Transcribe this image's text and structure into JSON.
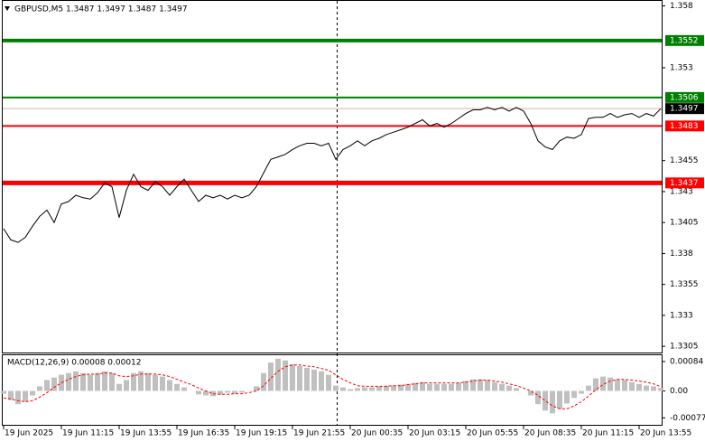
{
  "chart_data": [
    {
      "type": "line",
      "title": "GBPUSD,M5  1.3487 1.3497 1.3487 1.3497",
      "color": "#000000",
      "categories": [
        "19 Jun 2025",
        null,
        null,
        null,
        null,
        null,
        null,
        null,
        "19 Jun 11:15",
        null,
        null,
        null,
        null,
        null,
        null,
        null,
        "19 Jun 13:55",
        null,
        null,
        null,
        null,
        null,
        null,
        null,
        "19 Jun 16:35",
        null,
        null,
        null,
        null,
        null,
        null,
        null,
        "19 Jun 19:15",
        null,
        null,
        null,
        null,
        null,
        null,
        null,
        "19 Jun 21:55",
        null,
        null,
        null,
        null,
        null,
        null,
        null,
        "20 Jun 00:35",
        null,
        null,
        null,
        null,
        null,
        null,
        null,
        "20 Jun 03:15",
        null,
        null,
        null,
        null,
        null,
        null,
        null,
        "20 Jun 05:55",
        null,
        null,
        null,
        null,
        null,
        null,
        null,
        "20 Jun 08:35",
        null,
        null,
        null,
        null,
        null,
        null,
        null,
        "20 Jun 11:15",
        null,
        null,
        null,
        null,
        null,
        null,
        null,
        "20 Jun 13:55",
        null,
        null,
        null
      ],
      "values": [
        1.34,
        1.3391,
        1.3389,
        1.3393,
        1.3402,
        1.341,
        1.3415,
        1.3405,
        1.342,
        1.3422,
        1.3427,
        1.3425,
        1.3424,
        1.3429,
        1.3437,
        1.3434,
        1.3409,
        1.3431,
        1.3444,
        1.3434,
        1.3431,
        1.3438,
        1.3434,
        1.3427,
        1.3434,
        1.344,
        1.3431,
        1.3422,
        1.3427,
        1.3425,
        1.3427,
        1.3424,
        1.3427,
        1.3425,
        1.3427,
        1.3434,
        1.3445,
        1.3456,
        1.3458,
        1.346,
        1.3464,
        1.3467,
        1.3469,
        1.3469,
        1.3467,
        1.3469,
        1.3456,
        1.3464,
        1.3467,
        1.3471,
        1.3467,
        1.3471,
        1.3473,
        1.3476,
        1.3478,
        1.348,
        1.3482,
        1.3485,
        1.3488,
        1.3483,
        1.3485,
        1.3482,
        1.3485,
        1.3489,
        1.3493,
        1.3496,
        1.3496,
        1.3498,
        1.3496,
        1.3498,
        1.3495,
        1.3498,
        1.3495,
        1.3485,
        1.3471,
        1.3466,
        1.3464,
        1.3471,
        1.3474,
        1.3473,
        1.3476,
        1.3489,
        1.349,
        1.349,
        1.3493,
        1.349,
        1.3492,
        1.3493,
        1.349,
        1.3493,
        1.3491,
        1.3497
      ],
      "ylim": [
        1.33,
        1.3584
      ],
      "yticks": [
        1.358,
        1.353,
        1.3455,
        1.343,
        1.3405,
        1.338,
        1.3355,
        1.333,
        1.3305
      ],
      "levels": [
        {
          "value": 1.3552,
          "color": "#008000",
          "width": 4
        },
        {
          "value": 1.3506,
          "color": "#008000",
          "width": 2
        },
        {
          "value": 1.3497,
          "color": "#d0b4a8",
          "width": 1,
          "box": "#000000"
        },
        {
          "value": 1.3483,
          "color": "#ff0000",
          "width": 2
        },
        {
          "value": 1.3437,
          "color": "#ff0000",
          "width": 5
        }
      ]
    },
    {
      "type": "macd",
      "title": "MACD(12,26,9) 0.00008 0.00012",
      "ylim": [
        -0.00097,
        0.00102
      ],
      "yticks": [
        0.00084,
        {
          "value": 0,
          "label": "0.00"
        },
        -0.00077
      ],
      "series": [
        {
          "style": "histogram",
          "color": "#c0c0c0",
          "values": [
            -8e-05,
            -0.00026,
            -0.00038,
            -0.00031,
            -0.00013,
            0.00013,
            0.00031,
            0.00038,
            0.00046,
            0.00051,
            0.00056,
            0.00051,
            0.00046,
            0.00051,
            0.00056,
            0.00051,
            0.0002,
            0.00031,
            0.00051,
            0.00056,
            0.00051,
            0.00046,
            0.00041,
            0.00031,
            0.0002,
            0.0001,
            0,
            -0.0001,
            -0.00013,
            -0.00015,
            -0.0001,
            -5e-05,
            -8e-05,
            -5e-05,
            0,
            0.00013,
            0.00051,
            0.00081,
            0.00092,
            0.00087,
            0.00076,
            0.00071,
            0.00066,
            0.00061,
            0.00056,
            0.00046,
            0.00015,
            0.0001,
            5e-05,
            8e-05,
            0.0001,
            0.0001,
            0.00013,
            0.00015,
            0.00015,
            0.00018,
            0.0002,
            0.00023,
            0.00025,
            0.0002,
            0.0002,
            0.0002,
            0.0002,
            0.00023,
            0.00028,
            0.00033,
            0.00033,
            0.00031,
            0.00025,
            0.0002,
            0.00015,
            8e-05,
            0,
            -0.00013,
            -0.00038,
            -0.00056,
            -0.00064,
            -0.00051,
            -0.00036,
            -0.0002,
            -8e-05,
            0.00015,
            0.00036,
            0.00041,
            0.00038,
            0.00033,
            0.00031,
            0.00025,
            0.0002,
            0.00015,
            0.00013,
            8e-05
          ]
        },
        {
          "style": "dashed",
          "color": "#ff0000",
          "values": [
            -0.0002,
            -0.00023,
            -0.00028,
            -0.00031,
            -0.00028,
            -0.00018,
            -5e-05,
            0.0001,
            0.00023,
            0.00033,
            0.00041,
            0.00046,
            0.00048,
            0.00048,
            0.00051,
            0.00051,
            0.00043,
            0.00041,
            0.00043,
            0.00048,
            0.00048,
            0.00048,
            0.00046,
            0.00041,
            0.00033,
            0.00025,
            0.00018,
            8e-05,
            0,
            -8e-05,
            -0.0001,
            -0.0001,
            -8e-05,
            -8e-05,
            -5e-05,
            0,
            0.00015,
            0.00036,
            0.00056,
            0.00069,
            0.00074,
            0.00074,
            0.00071,
            0.00069,
            0.00064,
            0.00059,
            0.00046,
            0.00033,
            0.00023,
            0.00015,
            0.00013,
            0.00013,
            0.00013,
            0.00013,
            0.00015,
            0.00015,
            0.00018,
            0.0002,
            0.00023,
            0.00023,
            0.00023,
            0.00023,
            0.00023,
            0.00023,
            0.00025,
            0.00028,
            0.00031,
            0.00031,
            0.00028,
            0.00025,
            0.0002,
            0.00015,
            8e-05,
            0,
            -0.00013,
            -0.00028,
            -0.00043,
            -0.00051,
            -0.00051,
            -0.00043,
            -0.00031,
            -0.00015,
            3e-05,
            0.00018,
            0.00028,
            0.00033,
            0.00033,
            0.00031,
            0.00028,
            0.00025,
            0.0002,
            0.00012
          ]
        }
      ]
    }
  ]
}
